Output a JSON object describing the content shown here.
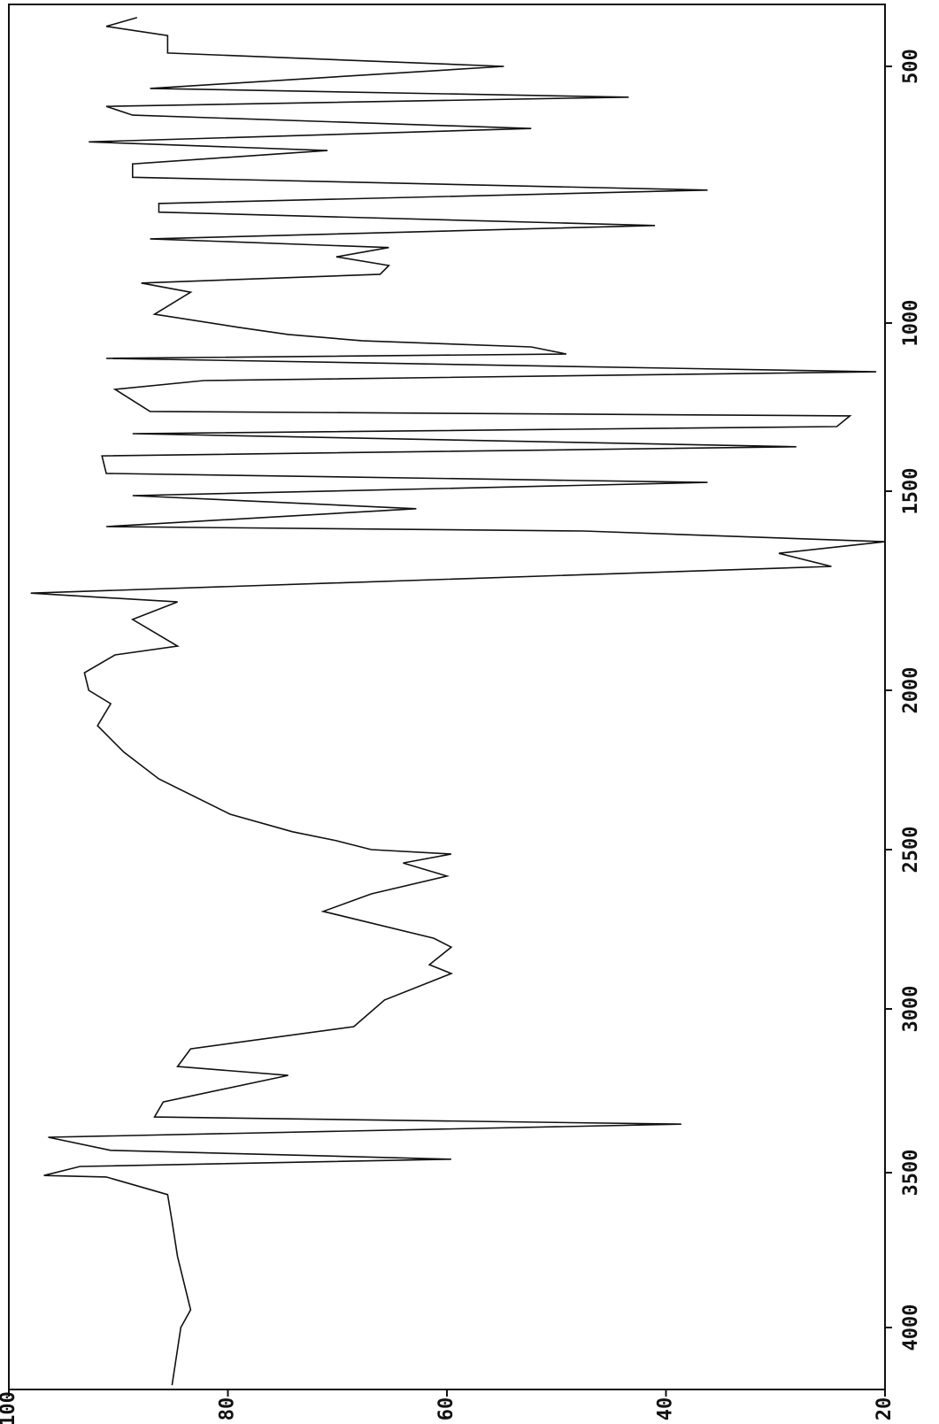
{
  "chart_data": {
    "type": "line",
    "x": [
      405,
      422,
      440,
      474,
      500,
      543,
      560,
      578,
      595,
      621,
      647,
      664,
      690,
      716,
      741,
      767,
      784,
      810,
      836,
      853,
      871,
      888,
      905,
      922,
      940,
      983,
      1013,
      1034,
      1053,
      1071,
      1092,
      1105,
      1145,
      1171,
      1197,
      1263,
      1276,
      1308,
      1329,
      1368,
      1395,
      1447,
      1474,
      1511,
      1544,
      1589,
      1600,
      1627,
      1656,
      1689,
      1756,
      1778,
      1822,
      1889,
      1911,
      1956,
      2000,
      2042,
      2111,
      2194,
      2278,
      2389,
      2444,
      2472,
      2500,
      2514,
      2542,
      2583,
      2639,
      2694,
      2778,
      2806,
      2861,
      2889,
      2972,
      3054,
      3122,
      3176,
      3203,
      3284,
      3330,
      3352,
      3392,
      3432,
      3459,
      3481,
      3509,
      3514,
      3571,
      3657,
      3771,
      3943,
      4000,
      4186
    ],
    "values": [
      88.3,
      91.1,
      85.5,
      85.5,
      54.8,
      87.1,
      43.4,
      91.1,
      88.7,
      52.3,
      92.7,
      70.9,
      88.7,
      88.7,
      36.2,
      86.3,
      86.3,
      41.0,
      87.1,
      65.3,
      70.1,
      65.3,
      66.1,
      87.9,
      83.4,
      86.7,
      79.0,
      74.5,
      67.7,
      52.3,
      49.1,
      91.1,
      20.8,
      82.2,
      90.3,
      87.1,
      23.2,
      24.4,
      88.7,
      28.1,
      91.5,
      91.1,
      36.2,
      88.7,
      62.8,
      91.1,
      47.5,
      20.0,
      29.7,
      24.9,
      98.0,
      84.6,
      88.7,
      84.6,
      90.3,
      93.1,
      92.7,
      90.7,
      91.9,
      89.5,
      86.3,
      79.8,
      74.1,
      70.1,
      66.9,
      59.6,
      64.0,
      60.0,
      66.9,
      71.3,
      61.2,
      59.6,
      61.6,
      59.6,
      65.7,
      68.5,
      83.4,
      84.6,
      74.5,
      85.9,
      86.7,
      38.6,
      96.4,
      90.7,
      59.6,
      93.5,
      96.8,
      91.1,
      85.5,
      85.1,
      84.6,
      83.4,
      84.3,
      85.1
    ],
    "color": "#111111",
    "xlim": [
      380,
      4200
    ],
    "xticks": [
      500,
      1000,
      1500,
      2000,
      2500,
      3000,
      3500,
      4000
    ],
    "ylim": [
      20,
      100
    ],
    "yticks": [
      100,
      80,
      60,
      40,
      20
    ]
  }
}
